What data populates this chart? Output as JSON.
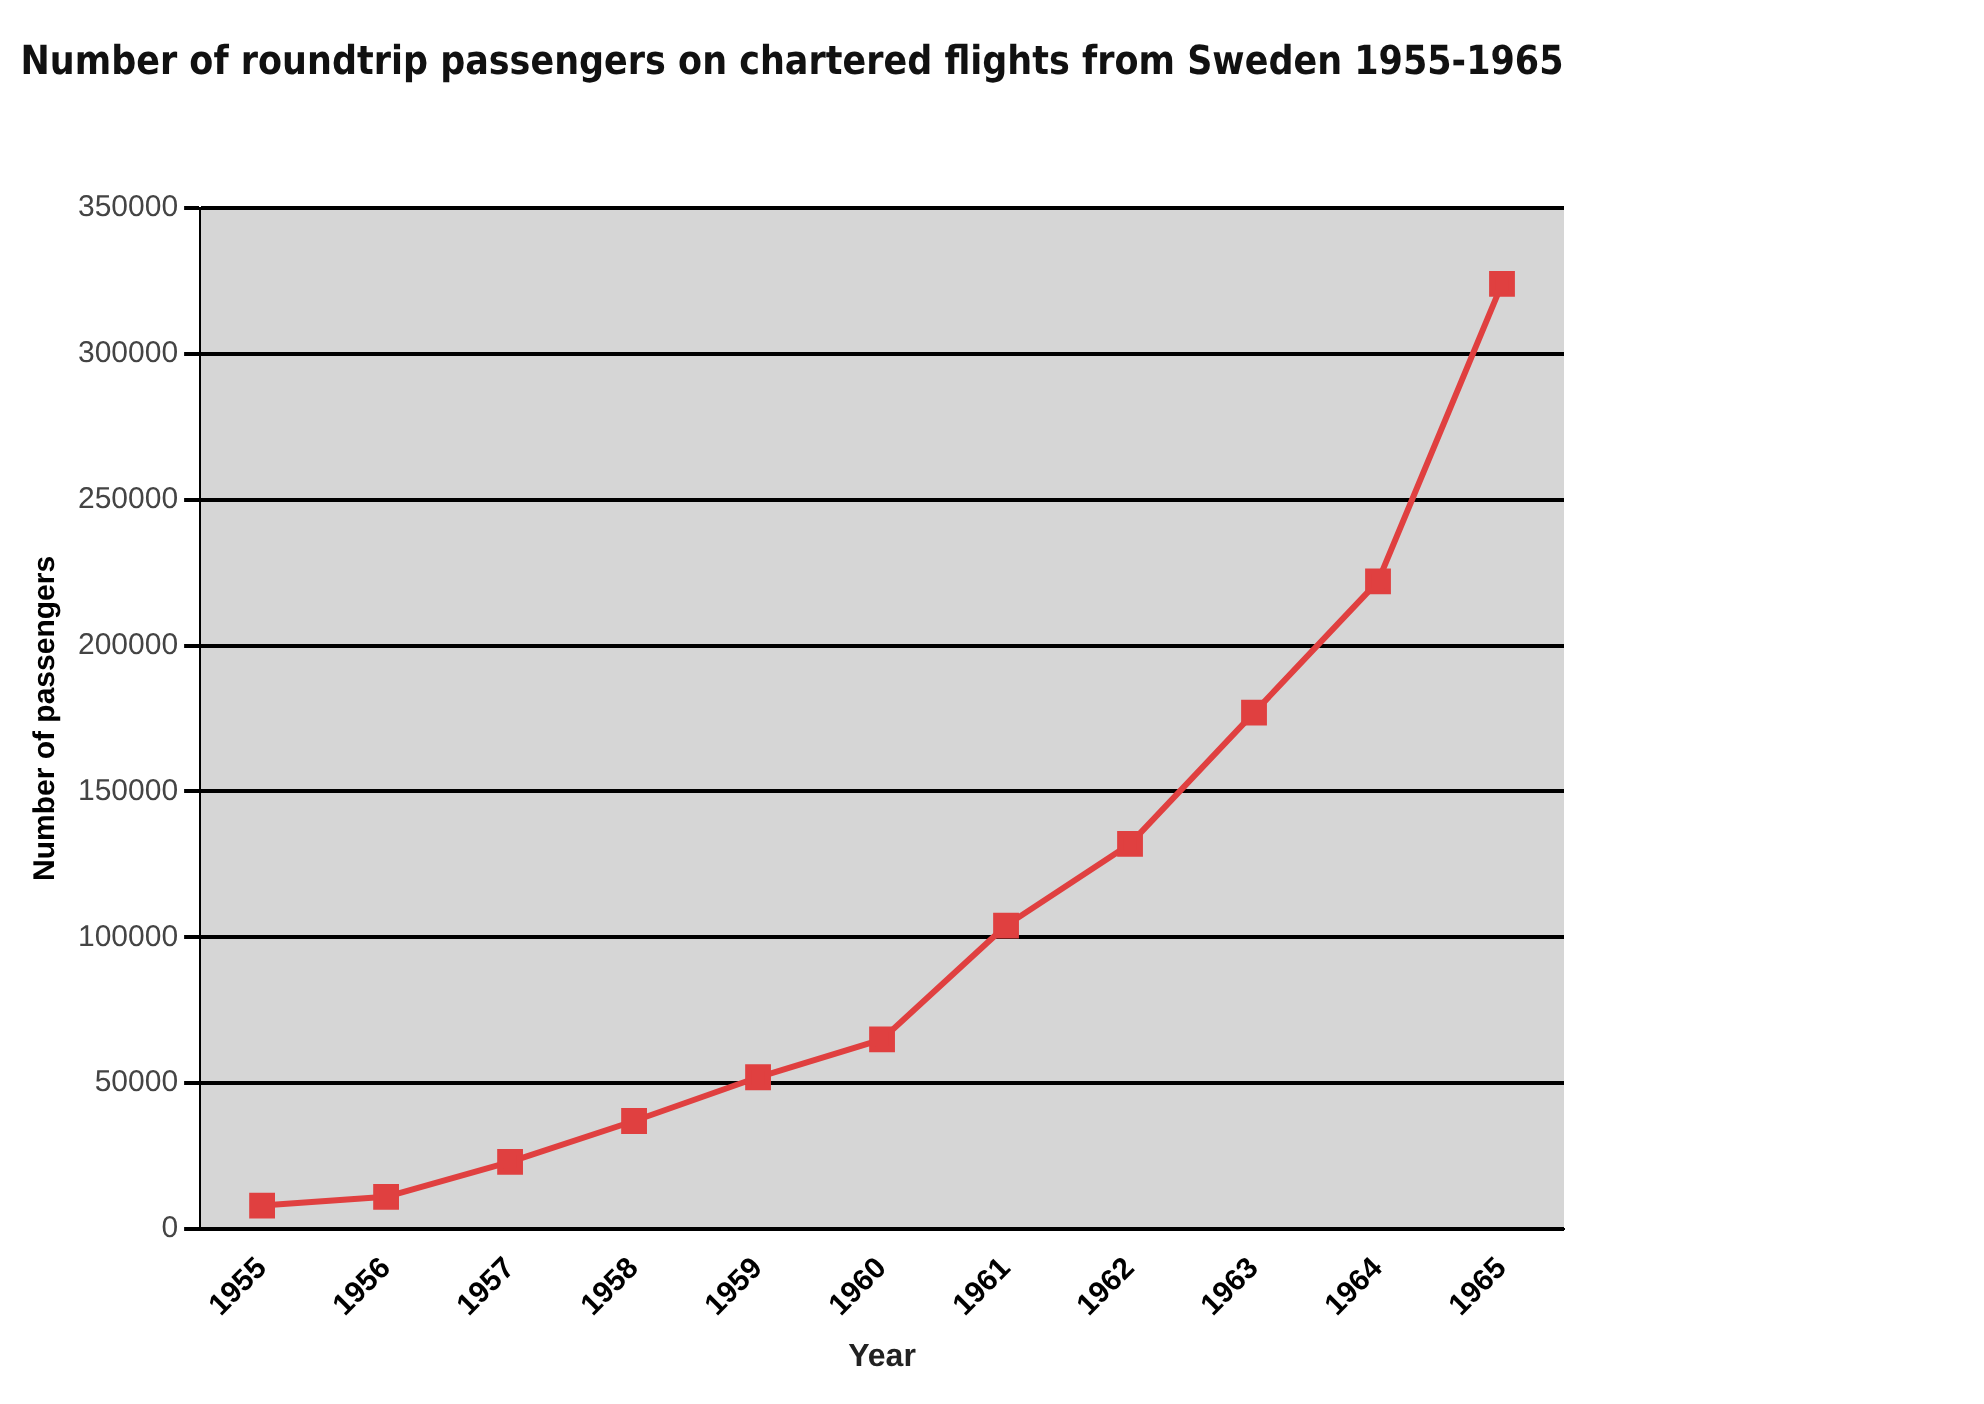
{
  "chart_data": {
    "type": "line",
    "title": "Number of roundtrip passengers on chartered flights from Sweden 1955-1965",
    "xlabel": "Year",
    "ylabel": "Number of passengers",
    "categories": [
      "1955",
      "1956",
      "1957",
      "1958",
      "1959",
      "1960",
      "1961",
      "1962",
      "1963",
      "1964",
      "1965"
    ],
    "series": [
      {
        "color": "#e04040",
        "values": [
          8000,
          11000,
          23000,
          37000,
          52000,
          65000,
          104000,
          132000,
          177000,
          222000,
          324000
        ]
      }
    ],
    "ylim": [
      0,
      350000
    ],
    "yticks": [
      0,
      50000,
      100000,
      150000,
      200000,
      250000,
      300000,
      350000
    ],
    "grid": "y",
    "legend": false,
    "marker": "square",
    "line_style": "solid"
  }
}
